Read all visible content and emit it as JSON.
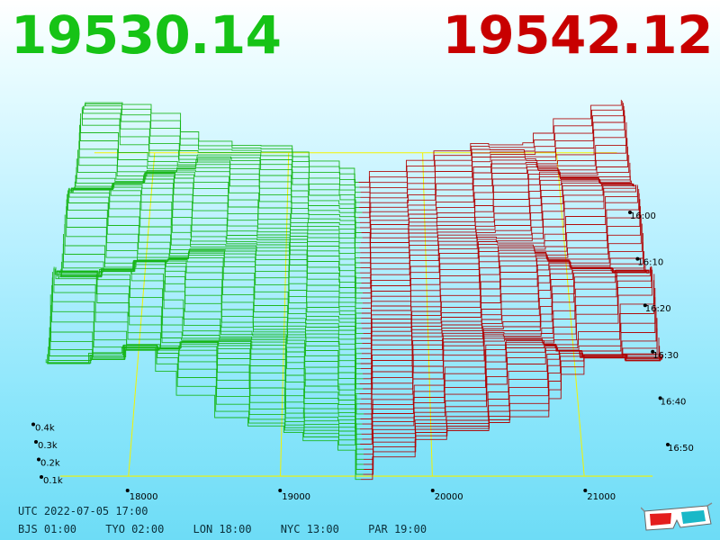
{
  "header": {
    "bid_price": "19530.14",
    "ask_price": "19542.12",
    "bid_color": "#16c316",
    "ask_color": "#c80000"
  },
  "footer": {
    "utc_time": "UTC 2022-07-05 17:00",
    "zones": [
      {
        "label": "BJS 01:00"
      },
      {
        "label": "TYO 02:00"
      },
      {
        "label": "LON 18:00"
      },
      {
        "label": "NYC 13:00"
      },
      {
        "label": "PAR 19:00"
      }
    ]
  },
  "icons": {
    "glasses": "3d-glasses-icon"
  },
  "chart_data": {
    "type": "area",
    "xlabel": "",
    "ylabel": "",
    "x_ticks": [
      18000,
      19000,
      20000,
      21000
    ],
    "x_tick_labels": [
      "18000",
      "19000",
      "20000",
      "21000"
    ],
    "x_range": [
      17400,
      21600
    ],
    "mid_price": 19536,
    "depth_ticks": [
      "0.1k",
      "0.2k",
      "0.3k",
      "0.4k"
    ],
    "depth_values": [
      100,
      200,
      300,
      400
    ],
    "time_ticks": [
      "16:00",
      "16:10",
      "16:20",
      "16:30",
      "16:40",
      "16:50"
    ],
    "series": [
      {
        "name": "bid",
        "color": "#16b516"
      },
      {
        "name": "ask",
        "color": "#b00000"
      }
    ],
    "grid_color": "#f3f300",
    "snapshot_count": 60
  }
}
